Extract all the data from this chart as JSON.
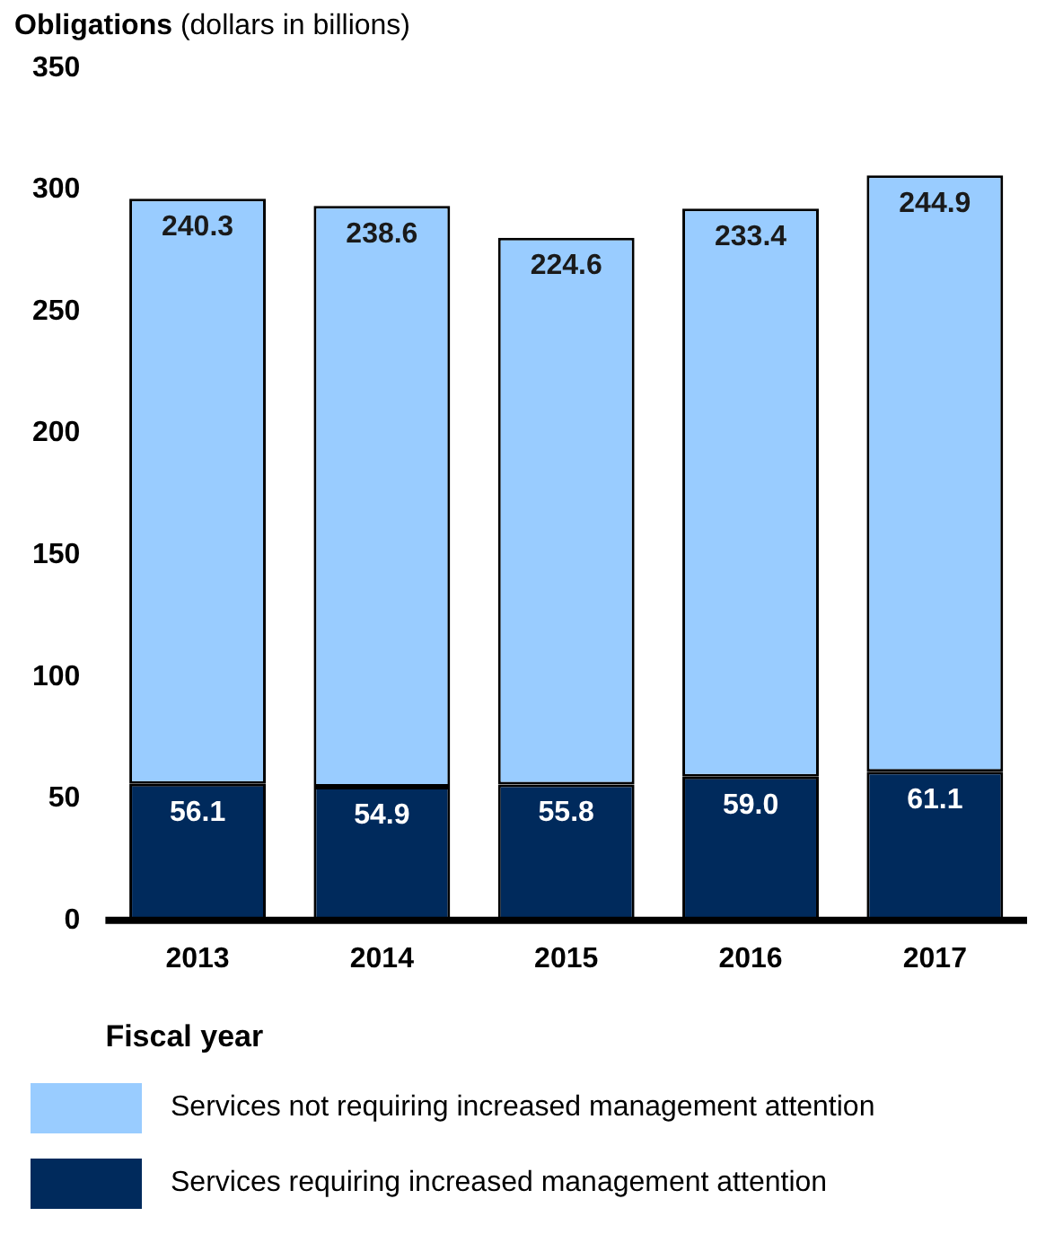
{
  "chart_data": {
    "type": "bar",
    "stacked": true,
    "ylabel": "Obligations (dollars in billions)",
    "xlabel": "Fiscal year",
    "categories": [
      "2013",
      "2014",
      "2015",
      "2016",
      "2017"
    ],
    "series": [
      {
        "name": "Services requiring increased management attention",
        "color": "#002a5c",
        "values": [
          56.1,
          54.9,
          55.8,
          59.0,
          61.1
        ],
        "value_labels": [
          "56.1",
          "54.9",
          "55.8",
          "59.0",
          "61.1"
        ]
      },
      {
        "name": "Services not requiring increased management attention",
        "color": "#99ccff",
        "values": [
          240.3,
          238.6,
          224.6,
          233.4,
          244.9
        ],
        "value_labels": [
          "240.3",
          "238.6",
          "224.6",
          "233.4",
          "244.9"
        ]
      }
    ],
    "ylim": [
      0,
      350
    ],
    "yticks": [
      0,
      50,
      100,
      150,
      200,
      250,
      300,
      350
    ],
    "grid": false,
    "legend": "bottom"
  }
}
